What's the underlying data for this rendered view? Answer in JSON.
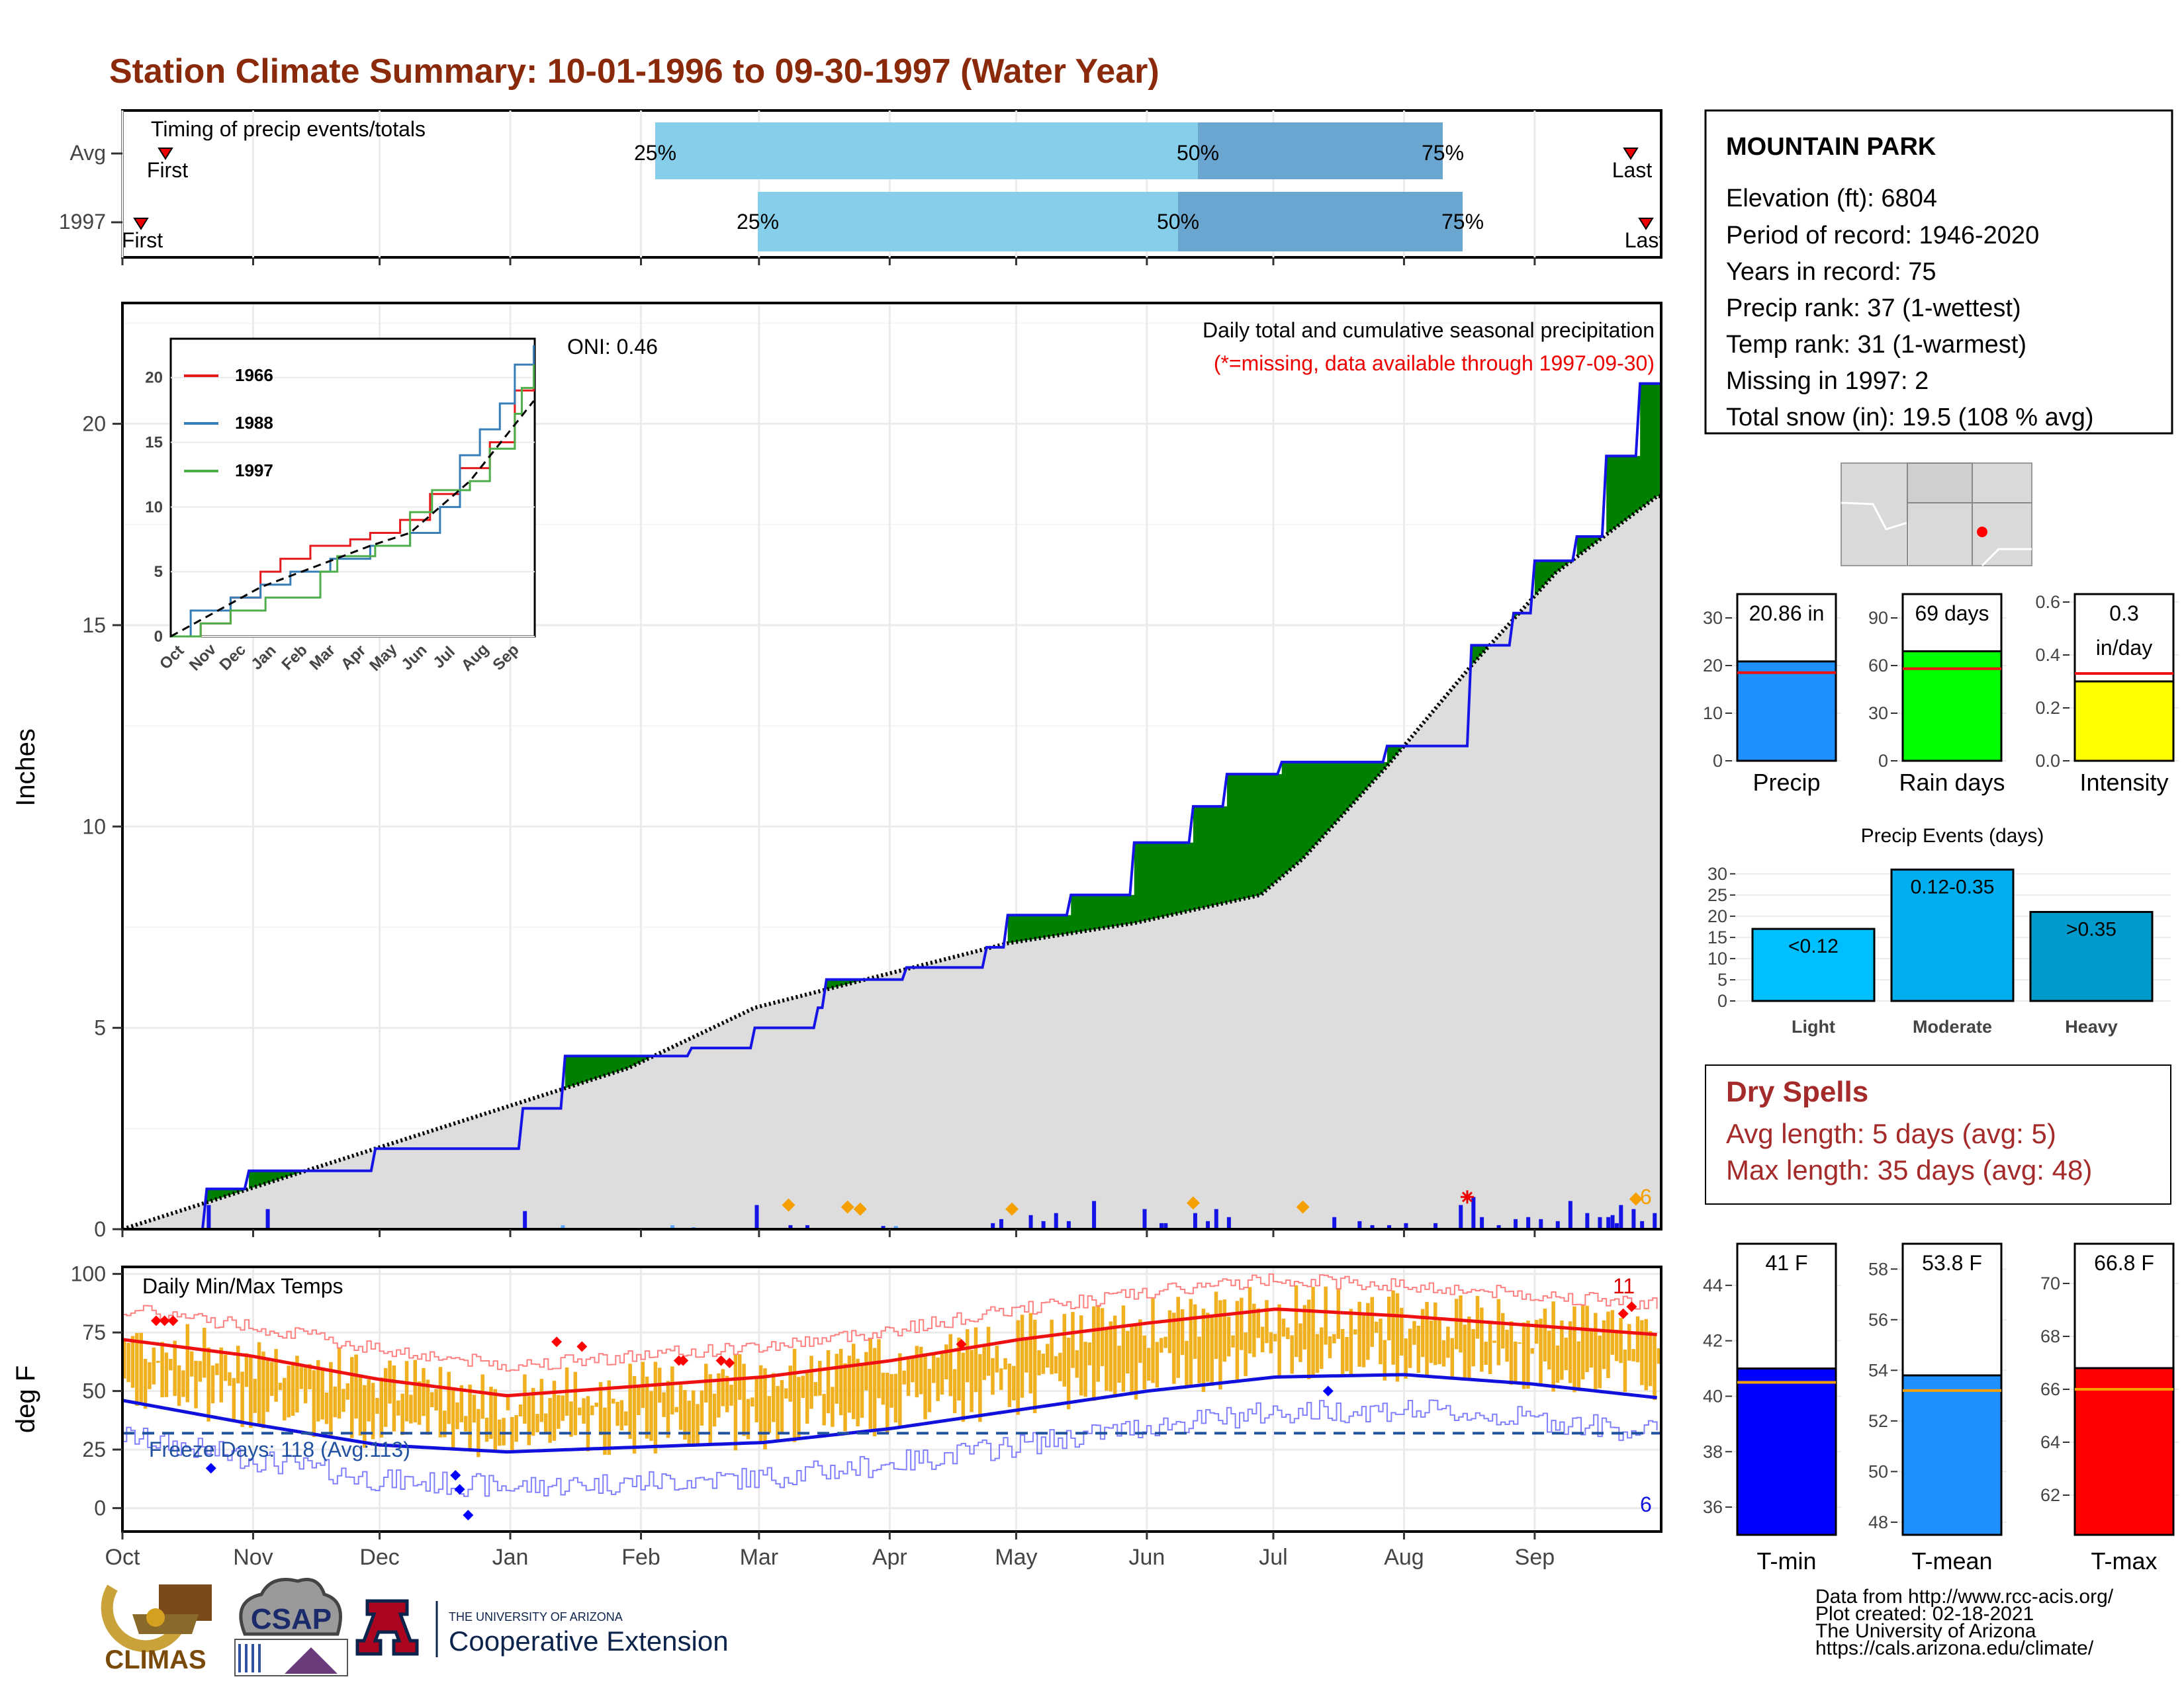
{
  "title": "Station Climate Summary: 10-01-1996 to 09-30-1997 (Water Year)",
  "colors": {
    "title": "#8b2a0a",
    "quartile_light": "#87ceeb",
    "quartile_dark": "#6aa6cf",
    "green_fill": "#008000",
    "brown_fill": "#7a4a0a",
    "avg_fill": "#dddddd",
    "cum_line": "#1414e6",
    "temp_bar": "#f0b020",
    "tmax_line": "#ee1111",
    "tmin_line": "#1111dd",
    "precip_bar": "#1e90ff",
    "raindays_bar": "#00ff00",
    "intensity_bar": "#ffff00",
    "event_light": "#00bfff",
    "event_moderate": "#00aeef",
    "event_heavy": "#009acd",
    "dry_spells": "#a52a2a",
    "tmin_bar": "#0000ff",
    "tmean_bar": "#1e90ff",
    "tmax_bar": "#ff0000"
  },
  "timing": {
    "label": "Timing of precip events/totals",
    "rows": [
      {
        "name": "Avg",
        "first": "First",
        "last": "Last",
        "q25": "25%",
        "q50": "50%",
        "q75": "75%"
      },
      {
        "name": "1997",
        "first": "First",
        "last": "Last",
        "q25": "25%",
        "q50": "50%",
        "q75": "75%"
      }
    ]
  },
  "precip_panel": {
    "ylabel": "Inches",
    "title": "Daily total and cumulative seasonal precipitation",
    "note": "(*=missing, data available through 1997-09-30)",
    "oni": "ONI: 0.46",
    "yticks": [
      "0",
      "5",
      "10",
      "15",
      "20"
    ],
    "end_marker": "6"
  },
  "inset": {
    "legend": [
      "1966",
      "1988",
      "1997"
    ],
    "colors": [
      "#e41a1c",
      "#377eb8",
      "#4daf4a"
    ],
    "yticks": [
      "0",
      "5",
      "10",
      "15",
      "20"
    ],
    "xticks": [
      "Oct",
      "Nov",
      "Dec",
      "Jan",
      "Feb",
      "Mar",
      "Apr",
      "May",
      "Jun",
      "Jul",
      "Aug",
      "Sep"
    ]
  },
  "temp_panel": {
    "ylabel": "deg F",
    "title": "Daily Min/Max Temps",
    "freeze": "Freeze Days: 118 (Avg:113)",
    "yticks": [
      "0",
      "25",
      "50",
      "75",
      "100"
    ],
    "marker_top": "11",
    "marker_bottom": "6"
  },
  "months": [
    "Oct",
    "Nov",
    "Dec",
    "Jan",
    "Feb",
    "Mar",
    "Apr",
    "May",
    "Jun",
    "Jul",
    "Aug",
    "Sep"
  ],
  "station": {
    "name": "MOUNTAIN PARK",
    "lines": [
      "Elevation (ft): 6804",
      "Period of record: 1946-2020",
      "Years in record: 75",
      "Precip rank: 37 (1-wettest)",
      "Temp rank: 31 (1-warmest)",
      "Missing in 1997: 2",
      "Total snow (in): 19.5 (108 % avg)"
    ]
  },
  "mini_bars": {
    "precip": {
      "label": "Precip",
      "value_text": "20.86 in",
      "yticks": [
        "0",
        "10",
        "20",
        "30"
      ]
    },
    "raindays": {
      "label": "Rain days",
      "value_text": "69 days",
      "yticks": [
        "0",
        "30",
        "60",
        "90"
      ]
    },
    "intensity": {
      "label": "Intensity",
      "value_text_1": "0.3",
      "value_text_2": "in/day",
      "yticks": [
        "0.0",
        "0.2",
        "0.4",
        "0.6"
      ]
    }
  },
  "events": {
    "title": "Precip Events (days)",
    "yticks": [
      "0",
      "5",
      "10",
      "15",
      "20",
      "25",
      "30"
    ],
    "categories": [
      "Light",
      "Moderate",
      "Heavy"
    ],
    "labels": [
      "<0.12",
      "0.12-0.35",
      ">0.35"
    ]
  },
  "dry_spells": {
    "title": "Dry Spells",
    "avg": "Avg length: 5 days (avg: 5)",
    "max": "Max length: 35 days (avg: 48)"
  },
  "temp_bars": {
    "tmin": {
      "label": "T-min",
      "value_text": "41 F",
      "yticks": [
        "36",
        "38",
        "40",
        "42",
        "44"
      ]
    },
    "tmean": {
      "label": "T-mean",
      "value_text": "53.8 F",
      "yticks": [
        "48",
        "50",
        "52",
        "54",
        "56",
        "58"
      ]
    },
    "tmax": {
      "label": "T-max",
      "value_text": "66.8 F",
      "yticks": [
        "62",
        "64",
        "66",
        "68",
        "70"
      ]
    }
  },
  "footer": {
    "lines": [
      "Data from http://www.rcc-acis.org/",
      "Plot created: 02-18-2021",
      "The University of Arizona",
      "https://cals.arizona.edu/climate/"
    ],
    "climas": "CLIMAS",
    "csap": "CSAP",
    "ua_small": "THE UNIVERSITY OF ARIZONA",
    "ua_big": "Cooperative Extension"
  },
  "chart_data": [
    {
      "type": "bar",
      "name": "Timing of precip events/totals",
      "series": [
        {
          "name": "Avg",
          "q25": 0.35,
          "q50": 0.7,
          "q75": 0.86
        },
        {
          "name": "1997",
          "q25": 0.415,
          "q50": 0.69,
          "q75": 0.87
        }
      ]
    },
    {
      "type": "area",
      "name": "Daily total and cumulative seasonal precipitation",
      "ylabel": "Inches",
      "ylim": [
        0,
        23
      ],
      "x_months": [
        "Oct",
        "Nov",
        "Dec",
        "Jan",
        "Feb",
        "Mar",
        "Apr",
        "May",
        "Jun",
        "Jul",
        "Aug",
        "Sep"
      ],
      "series": [
        {
          "name": "1997 cumulative",
          "x_day": [
            0,
            20,
            30,
            60,
            95,
            105,
            135,
            150,
            165,
            167,
            186,
            205,
            210,
            225,
            240,
            254,
            262,
            275,
            300,
            320,
            330,
            335,
            345,
            352,
            360,
            364
          ],
          "values": [
            0,
            1.0,
            1.45,
            2.0,
            3.0,
            4.3,
            4.5,
            5.0,
            5.5,
            6.2,
            6.5,
            7.0,
            7.8,
            8.3,
            9.6,
            10.5,
            11.3,
            11.6,
            12.0,
            14.5,
            15.3,
            16.6,
            17.2,
            19.2,
            21.0,
            21.0
          ]
        },
        {
          "name": "Avg cumulative",
          "x_day": [
            0,
            60,
            120,
            150,
            180,
            210,
            240,
            270,
            280,
            300,
            320,
            340,
            364
          ],
          "values": [
            0,
            2.0,
            4.0,
            5.5,
            6.3,
            7.1,
            7.6,
            8.3,
            9.2,
            11.5,
            14.0,
            16.3,
            18.2
          ]
        }
      ]
    },
    {
      "type": "line",
      "name": "Daily Min/Max Temps",
      "ylabel": "deg F",
      "ylim": [
        -10,
        103
      ],
      "series": [
        {
          "name": "Avg max",
          "x_month": [
            0,
            1,
            2,
            3,
            4,
            5,
            6,
            7,
            8,
            9,
            10,
            11,
            12
          ],
          "values": [
            72,
            65,
            55,
            48,
            52,
            56,
            63,
            72,
            79,
            85,
            82,
            78,
            74
          ]
        },
        {
          "name": "Avg min",
          "x_month": [
            0,
            1,
            2,
            3,
            4,
            5,
            6,
            7,
            8,
            9,
            10,
            11,
            12
          ],
          "values": [
            46,
            36,
            27,
            24,
            26,
            28,
            34,
            42,
            50,
            56,
            57,
            53,
            47
          ]
        }
      ],
      "freeze_line": 32
    },
    {
      "type": "bar",
      "name": "Precip",
      "categories": [
        "Precip"
      ],
      "values": [
        20.86
      ],
      "average": 18.5,
      "ylim": [
        0,
        35
      ]
    },
    {
      "type": "bar",
      "name": "Rain days",
      "categories": [
        "Rain days"
      ],
      "values": [
        69
      ],
      "average": 58,
      "ylim": [
        0,
        105
      ]
    },
    {
      "type": "bar",
      "name": "Intensity",
      "categories": [
        "Intensity"
      ],
      "values": [
        0.3
      ],
      "average": 0.33,
      "ylim": [
        0,
        0.63
      ]
    },
    {
      "type": "bar",
      "name": "Precip Events (days)",
      "categories": [
        "Light",
        "Moderate",
        "Heavy"
      ],
      "values": [
        17,
        31,
        21
      ],
      "ylim": [
        0,
        32
      ]
    },
    {
      "type": "bar",
      "name": "T-min",
      "categories": [
        "T-min"
      ],
      "values": [
        41
      ],
      "average": 40.5,
      "ylim": [
        35,
        45.5
      ]
    },
    {
      "type": "bar",
      "name": "T-mean",
      "categories": [
        "T-mean"
      ],
      "values": [
        53.8
      ],
      "average": 53.2,
      "ylim": [
        47.5,
        59
      ]
    },
    {
      "type": "bar",
      "name": "T-max",
      "categories": [
        "T-max"
      ],
      "values": [
        66.8
      ],
      "average": 66,
      "ylim": [
        60.5,
        71.5
      ]
    }
  ]
}
